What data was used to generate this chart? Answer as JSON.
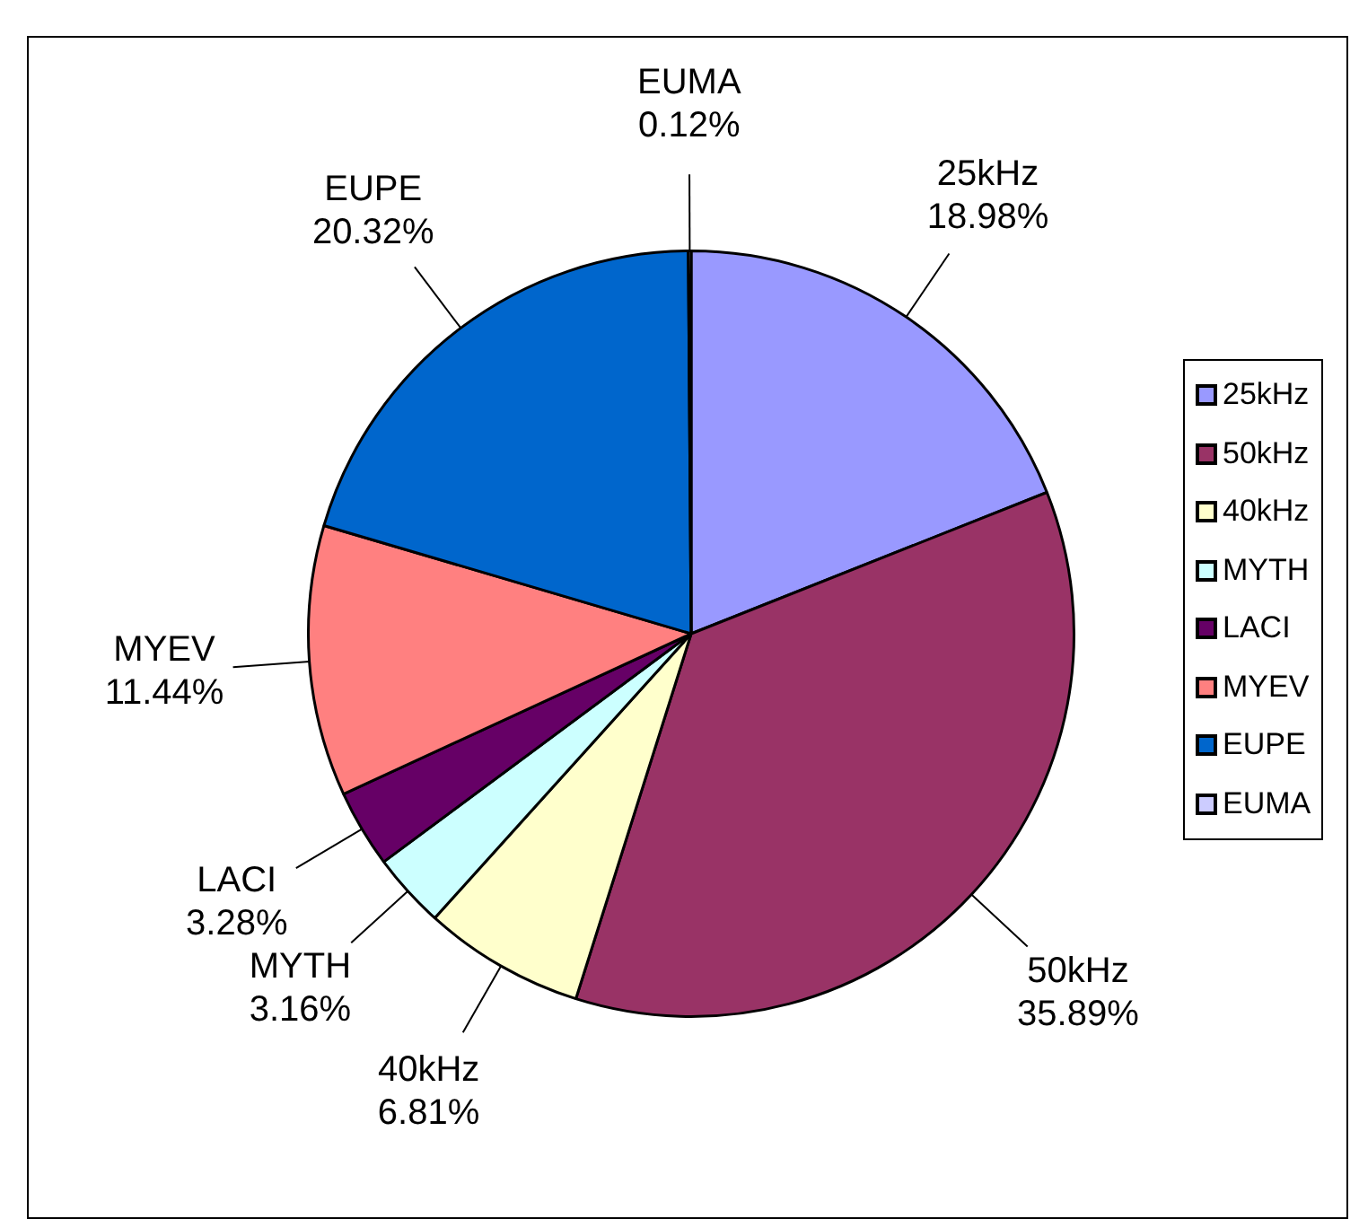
{
  "chart_data": {
    "type": "pie",
    "categories": [
      "25kHz",
      "50kHz",
      "40kHz",
      "MYTH",
      "LACI",
      "MYEV",
      "EUPE",
      "EUMA"
    ],
    "values": [
      18.98,
      35.89,
      6.81,
      3.16,
      3.28,
      11.44,
      20.32,
      0.12
    ],
    "colors": [
      "#9999ff",
      "#993366",
      "#ffffcc",
      "#ccffff",
      "#660066",
      "#ff8080",
      "#0066cc",
      "#ccccff"
    ],
    "value_labels": [
      "18.98%",
      "35.89%",
      "6.81%",
      "3.16%",
      "3.28%",
      "11.44%",
      "20.32%",
      "0.12%"
    ],
    "legend": "right"
  }
}
